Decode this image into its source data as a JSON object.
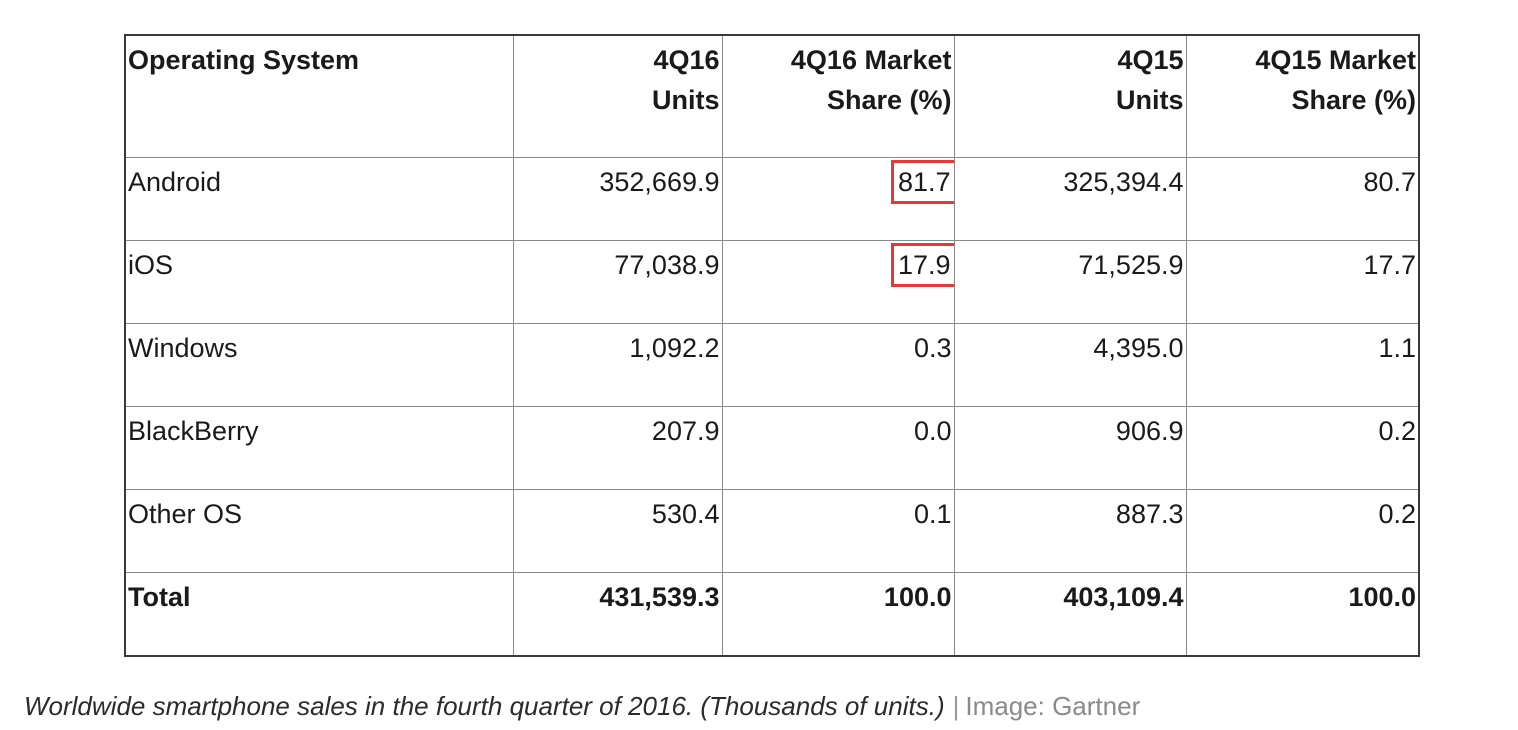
{
  "table": {
    "headers": [
      {
        "line1": "Operating System",
        "line2": ""
      },
      {
        "line1": "4Q16",
        "line2": "Units"
      },
      {
        "line1": "4Q16 Market",
        "line2": "Share (%)"
      },
      {
        "line1": "4Q15",
        "line2": "Units"
      },
      {
        "line1": "4Q15 Market",
        "line2": "Share (%)"
      }
    ],
    "rows": [
      {
        "os": "Android",
        "q16_units": "352,669.9",
        "q16_share": "81.7",
        "q15_units": "325,394.4",
        "q15_share": "80.7"
      },
      {
        "os": "iOS",
        "q16_units": "77,038.9",
        "q16_share": "17.9",
        "q15_units": "71,525.9",
        "q15_share": "17.7"
      },
      {
        "os": "Windows",
        "q16_units": "1,092.2",
        "q16_share": "0.3",
        "q15_units": "4,395.0",
        "q15_share": "1.1"
      },
      {
        "os": "BlackBerry",
        "q16_units": "207.9",
        "q16_share": "0.0",
        "q15_units": "906.9",
        "q15_share": "0.2"
      },
      {
        "os": "Other OS",
        "q16_units": "530.4",
        "q16_share": "0.1",
        "q15_units": "887.3",
        "q15_share": "0.2"
      }
    ],
    "total": {
      "os": "Total",
      "q16_units": "431,539.3",
      "q16_share": "100.0",
      "q15_units": "403,109.4",
      "q15_share": "100.0"
    },
    "highlight_color": "#e53935"
  },
  "caption": {
    "text": "Worldwide smartphone sales in the fourth quarter of 2016. (Thousands of units.)",
    "separator": "|",
    "credit": "Image: Gartner"
  }
}
